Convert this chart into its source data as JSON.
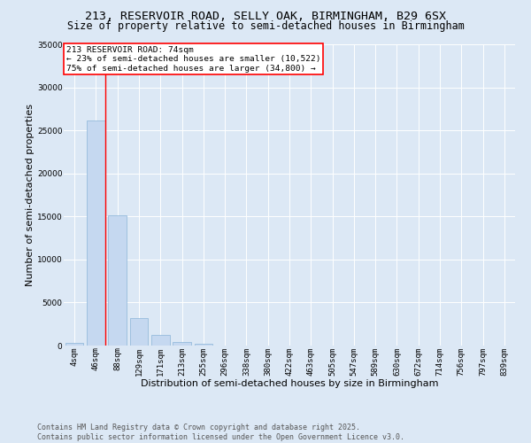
{
  "title1": "213, RESERVOIR ROAD, SELLY OAK, BIRMINGHAM, B29 6SX",
  "title2": "Size of property relative to semi-detached houses in Birmingham",
  "xlabel": "Distribution of semi-detached houses by size in Birmingham",
  "ylabel": "Number of semi-detached properties",
  "categories": [
    "4sqm",
    "46sqm",
    "88sqm",
    "129sqm",
    "171sqm",
    "213sqm",
    "255sqm",
    "296sqm",
    "338sqm",
    "380sqm",
    "422sqm",
    "463sqm",
    "505sqm",
    "547sqm",
    "589sqm",
    "630sqm",
    "672sqm",
    "714sqm",
    "756sqm",
    "797sqm",
    "839sqm"
  ],
  "values": [
    300,
    26100,
    15100,
    3200,
    1200,
    450,
    200,
    50,
    0,
    0,
    0,
    0,
    0,
    0,
    0,
    0,
    0,
    0,
    0,
    0,
    0
  ],
  "bar_color": "#c5d8f0",
  "bar_edge_color": "#8ab4d8",
  "vline_color": "red",
  "vline_pos": 1.42,
  "annotation_title": "213 RESERVOIR ROAD: 74sqm",
  "annotation_line2": "← 23% of semi-detached houses are smaller (10,522)",
  "annotation_line3": "75% of semi-detached houses are larger (34,800) →",
  "annotation_box_color": "white",
  "annotation_box_edgecolor": "red",
  "ylim": [
    0,
    35000
  ],
  "yticks": [
    0,
    5000,
    10000,
    15000,
    20000,
    25000,
    30000,
    35000
  ],
  "footer1": "Contains HM Land Registry data © Crown copyright and database right 2025.",
  "footer2": "Contains public sector information licensed under the Open Government Licence v3.0.",
  "background_color": "#dce8f5",
  "plot_bg_color": "#dce8f5",
  "grid_color": "white",
  "title_fontsize": 9.5,
  "subtitle_fontsize": 8.5,
  "label_fontsize": 8,
  "tick_fontsize": 6.5,
  "annot_fontsize": 6.8,
  "footer_fontsize": 6
}
